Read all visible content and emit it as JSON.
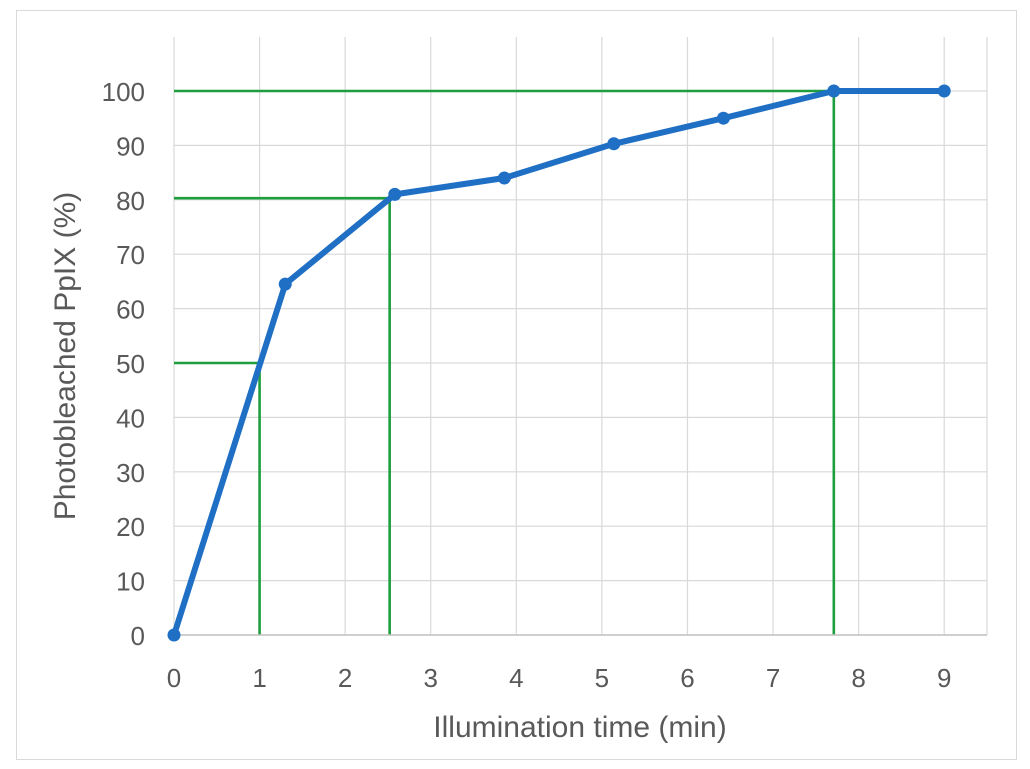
{
  "chart_data": {
    "type": "line",
    "title": "",
    "xlabel": "Illumination time (min)",
    "ylabel": "Photobleached PpIX (%)",
    "xlim": [
      0,
      9.5
    ],
    "ylim": [
      0,
      100
    ],
    "x_ticks": [
      0,
      1,
      2,
      3,
      4,
      5,
      6,
      7,
      8,
      9
    ],
    "y_ticks": [
      0,
      10,
      20,
      30,
      40,
      50,
      60,
      70,
      80,
      90,
      100
    ],
    "grid": true,
    "legend": "none",
    "series": [
      {
        "x": [
          0,
          1.3,
          2.58,
          3.86,
          5.14,
          6.42,
          7.71,
          9.0
        ],
        "y": [
          0,
          64.5,
          81,
          84,
          90.3,
          95,
          100,
          100
        ],
        "color": "#1f6fc5",
        "marker": "circle"
      }
    ],
    "reference_lines": [
      {
        "x": 1.0,
        "y": 50,
        "color": "#1e9e3e"
      },
      {
        "x": 2.52,
        "y": 80.3,
        "color": "#1e9e3e"
      },
      {
        "x": 7.71,
        "y": 100,
        "color": "#1e9e3e"
      }
    ]
  }
}
